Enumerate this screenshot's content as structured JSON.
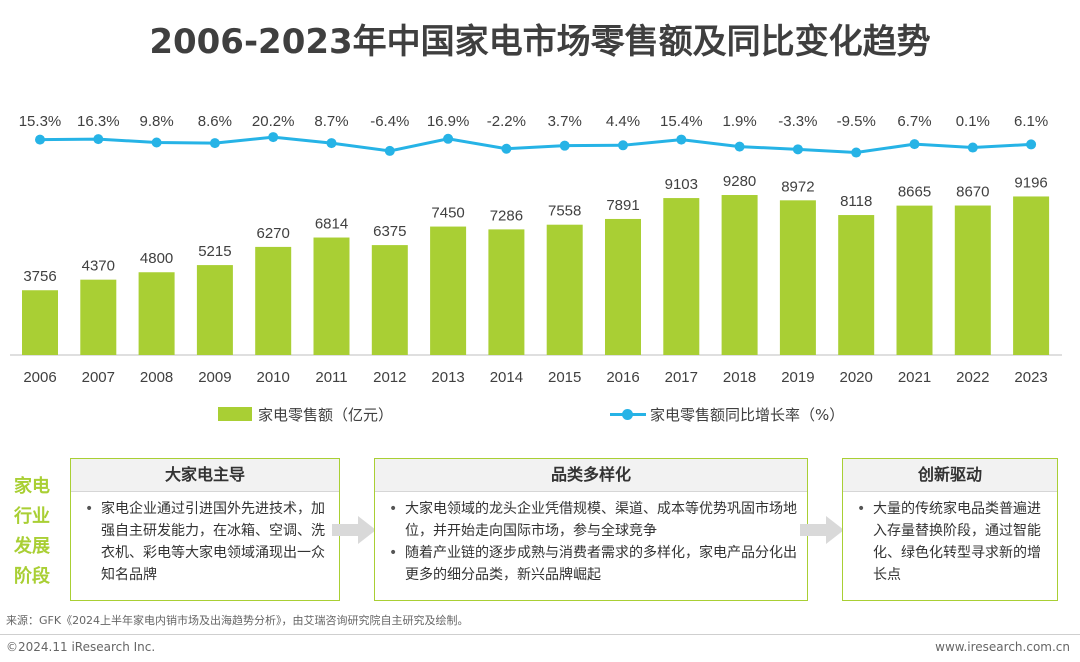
{
  "title": "2006-2023年中国家电市场零售额及同比变化趋势",
  "chart_data": {
    "type": "bar",
    "categories": [
      "2006",
      "2007",
      "2008",
      "2009",
      "2010",
      "2011",
      "2012",
      "2013",
      "2014",
      "2015",
      "2016",
      "2017",
      "2018",
      "2019",
      "2020",
      "2021",
      "2022",
      "2023"
    ],
    "series": [
      {
        "name": "家电零售额（亿元）",
        "type": "bar",
        "values": [
          3756,
          4370,
          4800,
          5215,
          6270,
          6814,
          6375,
          7450,
          7286,
          7558,
          7891,
          9103,
          9280,
          8972,
          8118,
          8665,
          8670,
          9196
        ]
      },
      {
        "name": "家电零售额同比增长率（%）",
        "type": "line",
        "values": [
          15.3,
          16.3,
          9.8,
          8.6,
          20.2,
          8.7,
          -6.4,
          16.9,
          -2.2,
          3.7,
          4.4,
          15.4,
          1.9,
          -3.3,
          -9.5,
          6.7,
          0.1,
          6.1
        ],
        "labels": [
          "15.3%",
          "16.3%",
          "9.8%",
          "8.6%",
          "20.2%",
          "8.7%",
          "-6.4%",
          "16.9%",
          "-2.2%",
          "3.7%",
          "4.4%",
          "15.4%",
          "1.9%",
          "-3.3%",
          "-9.5%",
          "6.7%",
          "0.1%",
          "6.1%"
        ]
      }
    ],
    "legend_position": "bottom",
    "grid": false,
    "colors": {
      "bar": "#a9cf34",
      "line": "#26b3e6"
    }
  },
  "legend": {
    "bar_label": "家电零售额（亿元）",
    "line_label": "家电零售额同比增长率（%）"
  },
  "stages": {
    "label": "家电行业发展阶段",
    "items": [
      {
        "title": "大家电主导",
        "bullets": [
          "家电企业通过引进国外先进技术，加强自主研发能力，在冰箱、空调、洗衣机、彩电等大家电领域涌现出一众知名品牌"
        ]
      },
      {
        "title": "品类多样化",
        "bullets": [
          "大家电领域的龙头企业凭借规模、渠道、成本等优势巩固市场地位，并开始走向国际市场，参与全球竞争",
          "随着产业链的逐步成熟与消费者需求的多样化，家电产品分化出更多的细分品类，新兴品牌崛起"
        ]
      },
      {
        "title": "创新驱动",
        "bullets": [
          "大量的传统家电品类普遍进入存量替换阶段，通过智能化、绿色化转型寻求新的增长点"
        ]
      }
    ]
  },
  "source": "来源：GFK《2024上半年家电内销市场及出海趋势分析》，由艾瑞咨询研究院自主研究及绘制。",
  "copyright": "©2024.11 iResearch Inc.",
  "website": "www.iresearch.com.cn"
}
